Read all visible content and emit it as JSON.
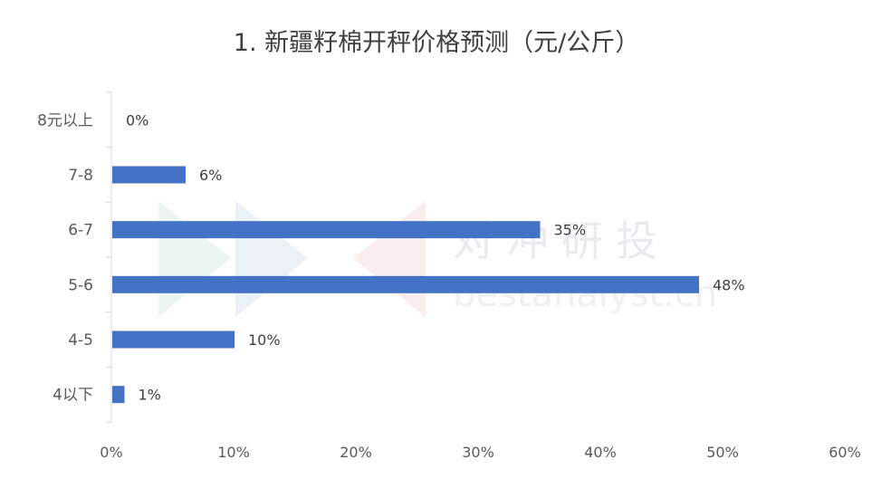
{
  "chart_data": {
    "type": "bar",
    "orientation": "horizontal",
    "title": "1. 新疆籽棉开秤价格预测（元/公斤）",
    "categories": [
      "8元以上",
      "7-8",
      "6-7",
      "5-6",
      "4-5",
      "4以下"
    ],
    "values": [
      0,
      6,
      35,
      48,
      10,
      1
    ],
    "value_labels": [
      "0%",
      "6%",
      "35%",
      "48%",
      "10%",
      "1%"
    ],
    "unit": "%",
    "xlim": [
      0,
      60
    ],
    "x_ticks": [
      0,
      10,
      20,
      30,
      40,
      50,
      60
    ],
    "x_tick_labels": [
      "0%",
      "10%",
      "20%",
      "30%",
      "40%",
      "50%",
      "60%"
    ],
    "xlabel": "",
    "ylabel": "",
    "grid": false,
    "legend": "none",
    "bar_color": "#4472c4"
  },
  "watermark": {
    "text": "对冲研投",
    "subtext": "bestanalyst.cn"
  }
}
